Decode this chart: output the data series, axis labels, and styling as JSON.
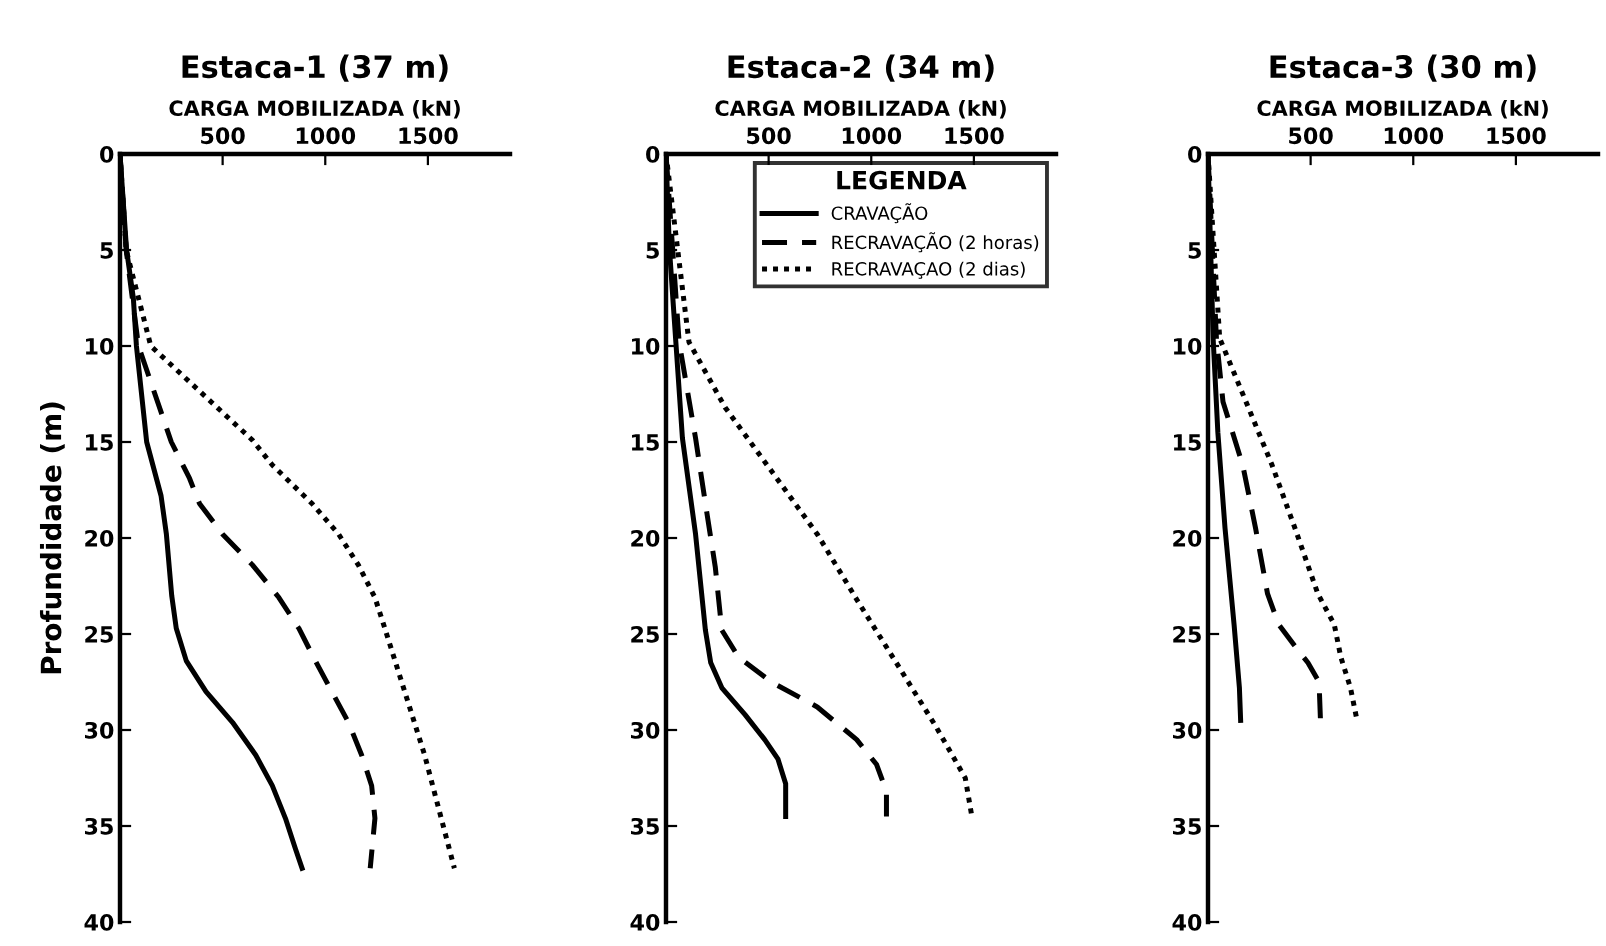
{
  "chart_data": [
    {
      "type": "line",
      "title": "Estaca-1 (37 m)",
      "xlabel": "CARGA MOBILIZADA (kN)",
      "ylabel": "Profundidade (m)",
      "xlim": [
        0,
        1900
      ],
      "xticks": [
        500,
        1000,
        1500
      ],
      "ylim": [
        40,
        0
      ],
      "yticks": [
        0,
        5,
        10,
        15,
        20,
        25,
        30,
        35,
        40
      ],
      "grid": false,
      "legend": false,
      "series": [
        {
          "color": "#000000",
          "line_style": "solid",
          "x": [
            0,
            32,
            65,
            80,
            130,
            200,
            226,
            252,
            274,
            323,
            419,
            548,
            661,
            742,
            806,
            855,
            887
          ],
          "values": [
            0,
            5,
            7.5,
            10,
            15,
            17.8,
            19.8,
            23,
            24.7,
            26.4,
            28,
            29.6,
            31.3,
            32.9,
            34.6,
            36.2,
            37.2
          ]
        },
        {
          "color": "#000000",
          "line_style": "dashed",
          "x": [
            0,
            30,
            90,
            250,
            339,
            387,
            500,
            645,
            774,
            871,
            952,
            1032,
            1113,
            1177,
            1226,
            1242,
            1219
          ],
          "values": [
            0,
            5,
            10,
            15,
            16.9,
            18.2,
            19.8,
            21.4,
            23.1,
            24.7,
            26.4,
            28,
            29.6,
            31.3,
            32.9,
            34.6,
            37.2
          ]
        },
        {
          "color": "#000000",
          "line_style": "dotted",
          "x": [
            0,
            30,
            150,
            645,
            742,
            935,
            1065,
            1161,
            1242,
            1290,
            1387,
            1484,
            1565,
            1629
          ],
          "values": [
            0,
            5,
            10,
            14.9,
            16.2,
            18.2,
            19.8,
            21.4,
            23.1,
            24.7,
            28,
            31.3,
            34.6,
            37.2
          ]
        }
      ]
    },
    {
      "type": "line",
      "title": "Estaca-2 (34 m)",
      "xlabel": "CARGA MOBILIZADA (kN)",
      "xlim": [
        0,
        1900
      ],
      "xticks": [
        500,
        1000,
        1500
      ],
      "ylim": [
        40,
        0
      ],
      "yticks": [
        0,
        5,
        10,
        15,
        20,
        25,
        30,
        35,
        40
      ],
      "grid": false,
      "legend": "top right",
      "legend_title": "LEGENDA",
      "series": [
        {
          "name": "CRAVAÇÃO",
          "color": "#000000",
          "line_style": "solid",
          "x": [
            0,
            16,
            48,
            80,
            144,
            192,
            218,
            272,
            385,
            481,
            545,
            583,
            583
          ],
          "values": [
            0,
            4.8,
            9.8,
            14.8,
            19.8,
            24.8,
            26.5,
            27.8,
            29.2,
            30.5,
            31.5,
            32.8,
            34.5
          ]
        },
        {
          "name": "RECRAVAÇÃO (2 horas)",
          "color": "#000000",
          "line_style": "dashed",
          "x": [
            0,
            64,
            144,
            192,
            240,
            272,
            353,
            513,
            737,
            929,
            1026,
            1074,
            1074
          ],
          "values": [
            0,
            9.8,
            14.8,
            18.2,
            21.5,
            24.8,
            26.2,
            27.5,
            28.8,
            30.5,
            31.8,
            33.2,
            34.5
          ]
        },
        {
          "name": "RECRAVAÇAO (2 dias)",
          "color": "#000000",
          "line_style": "dotted",
          "x": [
            0,
            112,
            288,
            513,
            737,
            929,
            1122,
            1314,
            1458,
            1490
          ],
          "values": [
            0,
            9.8,
            13.2,
            16.5,
            19.8,
            23.2,
            26.5,
            29.8,
            32.5,
            34.5
          ]
        }
      ]
    },
    {
      "type": "line",
      "title": "Estaca-3 (30 m)",
      "xlabel": "CARGA MOBILIZADA (kN)",
      "xlim": [
        0,
        1900
      ],
      "xticks": [
        500,
        1000,
        1500
      ],
      "ylim": [
        40,
        0
      ],
      "yticks": [
        0,
        5,
        10,
        15,
        20,
        25,
        30,
        35,
        40
      ],
      "grid": false,
      "legend": false,
      "series": [
        {
          "color": "#000000",
          "line_style": "solid",
          "x": [
            0,
            25,
            48,
            83,
            127,
            153,
            159
          ],
          "values": [
            0,
            9.6,
            14.5,
            19.5,
            24.5,
            27.8,
            29.5
          ]
        },
        {
          "color": "#000000",
          "line_style": "dashed",
          "x": [
            0,
            41,
            73,
            169,
            232,
            290,
            344,
            414,
            487,
            541,
            548
          ],
          "values": [
            0,
            9.6,
            12.9,
            16.2,
            19.5,
            22.9,
            24.5,
            25.5,
            26.5,
            27.5,
            29.5
          ]
        },
        {
          "color": "#000000",
          "line_style": "dotted",
          "x": [
            0,
            57,
            185,
            312,
            424,
            535,
            615,
            647,
            694,
            726
          ],
          "values": [
            0,
            9.6,
            12.9,
            16.2,
            19.5,
            22.9,
            24.5,
            26.2,
            27.8,
            29.5
          ]
        }
      ]
    }
  ]
}
